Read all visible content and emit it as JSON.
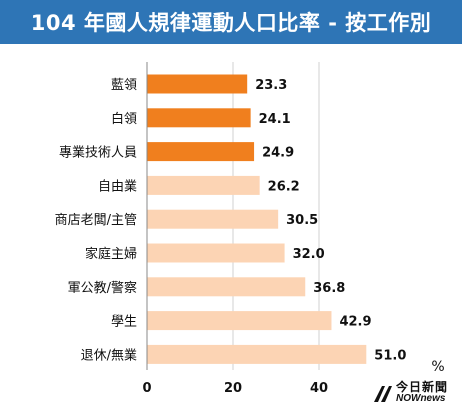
{
  "header": {
    "title": "104 年國人規律運動人口比率 - 按工作別"
  },
  "chart_data": {
    "type": "bar",
    "orientation": "horizontal",
    "title": "104 年國人規律運動人口比率 - 按工作別",
    "unit": "%",
    "categories": [
      "藍領",
      "白領",
      "專業技術人員",
      "自由業",
      "商店老闆/主管",
      "家庭主婦",
      "軍公教/警察",
      "學生",
      "退休/無業"
    ],
    "values": [
      23.3,
      24.1,
      24.9,
      26.2,
      30.5,
      32.0,
      36.8,
      42.9,
      51.0
    ],
    "value_labels": [
      "23.3",
      "24.1",
      "24.9",
      "26.2",
      "30.5",
      "32.0",
      "36.8",
      "42.9",
      "51.0"
    ],
    "highlight_count": 3,
    "colors": {
      "highlight": "#f07f1e",
      "normal": "#fcd4b4",
      "header": "#2e75b6"
    },
    "xlim": [
      0,
      50
    ],
    "xticks": [
      0,
      20,
      40
    ],
    "grid": true
  },
  "watermark": {
    "logo_text_cn": "今日新聞",
    "logo_text_en": "NOWnews"
  }
}
